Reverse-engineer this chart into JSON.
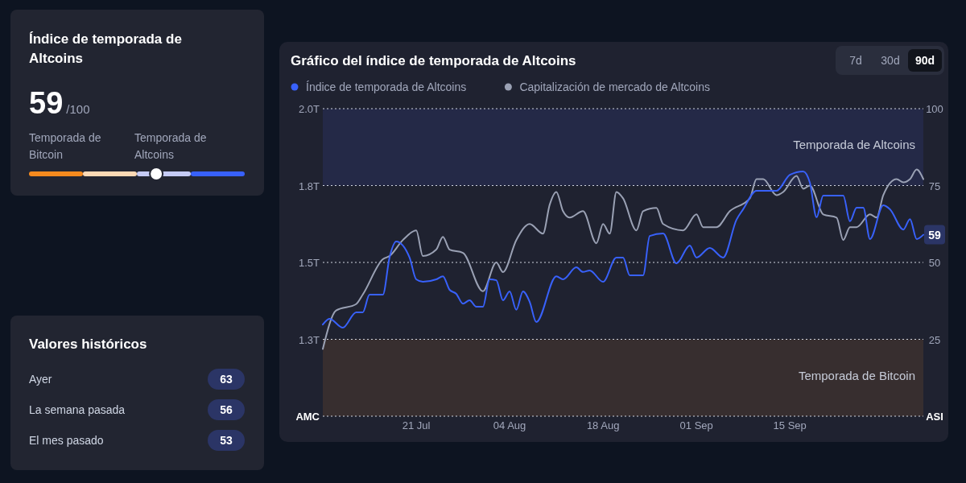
{
  "chart_data": [
    {
      "type": "other",
      "title": "Índice de temporada de Altcoins",
      "values": [
        59
      ],
      "annotations": [
        "/100",
        "Temporada de Bitcoin",
        "Temporada de Altcoins"
      ],
      "data_labels": true
    },
    {
      "type": "other",
      "title": "Valores históricos",
      "categories": [
        "Ayer",
        "La semana pasada",
        "El mes pasado"
      ],
      "values": [
        63,
        56,
        53
      ],
      "data_labels": true
    },
    {
      "type": "line",
      "title": "Gráfico del índice de temporada de Altcoins",
      "ylabel": "AMC",
      "y2label": "ASI",
      "annotations": [
        "7d",
        "30d",
        "90d"
      ],
      "legend": "top left",
      "grid": "y",
      "xlim": [
        "--07-07",
        "--10-05"
      ],
      "xticks": [
        {
          "value": "--07-21",
          "label": "21 Jul"
        },
        {
          "value": "--08-04",
          "label": "04 Aug"
        },
        {
          "value": "--08-18",
          "label": "18 Aug"
        },
        {
          "value": "--09-01",
          "label": "01 Sep"
        },
        {
          "value": "--09-15",
          "label": "15 Sep"
        }
      ],
      "ylim": [
        1.04,
        2.0
      ],
      "yticks": [
        {
          "value": 1.28,
          "label": "1.3T"
        },
        {
          "value": 1.52,
          "label": "1.5T"
        },
        {
          "value": 1.76,
          "label": "1.8T"
        },
        {
          "value": 2.0,
          "label": "2.0T"
        }
      ],
      "y2lim": [
        0,
        100
      ],
      "y2ticks": [
        25,
        50,
        75,
        100
      ],
      "bands": [
        {
          "axis": "y2",
          "from": 0,
          "to": 25,
          "label": "Temporada de Bitcoin",
          "color": "#372e2f"
        },
        {
          "axis": "y2",
          "from": 75,
          "to": 100,
          "label": "Temporada de Altcoins",
          "color": "#242947"
        }
      ],
      "series": [
        {
          "name": "Índice de temporada de Altcoins",
          "color": "#3861fb",
          "axis": "y2",
          "x": [
            "--07-07",
            "--07-08",
            "--07-10",
            "--07-12",
            "--07-13",
            "--07-14",
            "--07-16",
            "--07-17",
            "--07-18",
            "--07-20",
            "--07-21",
            "--07-22",
            "--07-24",
            "--07-25",
            "--07-26",
            "--07-27",
            "--07-28",
            "--07-29",
            "--07-30",
            "--07-31",
            "--08-01",
            "--08-02",
            "--08-03",
            "--08-04",
            "--08-05",
            "--08-06",
            "--08-07",
            "--08-08",
            "--08-11",
            "--08-12",
            "--08-14",
            "--08-15",
            "--08-16",
            "--08-18",
            "--08-20",
            "--08-21",
            "--08-22",
            "--08-24",
            "--08-25",
            "--08-27",
            "--08-29",
            "--08-31",
            "--09-01",
            "--09-03",
            "--09-05",
            "--09-07",
            "--09-08",
            "--09-10",
            "--09-13",
            "--09-15",
            "--09-17",
            "--09-18",
            "--09-19",
            "--09-20",
            "--09-23",
            "--09-24",
            "--09-25",
            "--09-26",
            "--09-27",
            "--09-29",
            "--09-30",
            "--10-02",
            "--10-03",
            "--10-04",
            "--10-05"
          ],
          "values": [
            29.8,
            31.7,
            28.8,
            33.8,
            33.8,
            39.5,
            39.5,
            51.6,
            56.8,
            51.6,
            44.5,
            43.7,
            44.5,
            45.5,
            41.1,
            39.8,
            36.6,
            37.7,
            35.6,
            35.6,
            44.5,
            44.2,
            37.7,
            40.6,
            34.6,
            40.6,
            37.2,
            30.6,
            45.5,
            44.5,
            48.4,
            46.9,
            47.4,
            43.7,
            51.6,
            51.6,
            45.8,
            45.8,
            58.6,
            59.4,
            49.7,
            55.5,
            51.6,
            54.7,
            51.6,
            63.9,
            67.3,
            73.3,
            73.3,
            78.5,
            79.6,
            75.9,
            64.7,
            71.7,
            71.7,
            63.4,
            67.8,
            67.8,
            57.6,
            68.6,
            67.3,
            60.7,
            64.1,
            57.6,
            59
          ],
          "value_labels": [
            null,
            null,
            null,
            null,
            null,
            null,
            null,
            null,
            null,
            null,
            null,
            null,
            null,
            null,
            null,
            null,
            null,
            null,
            null,
            null,
            null,
            null,
            null,
            null,
            null,
            null,
            null,
            null,
            null,
            null,
            null,
            null,
            null,
            null,
            null,
            null,
            null,
            null,
            null,
            null,
            null,
            null,
            null,
            null,
            null,
            null,
            null,
            null,
            null,
            null,
            null,
            null,
            null,
            null,
            null,
            null,
            null,
            null,
            null,
            null,
            null,
            null,
            null,
            null,
            "59"
          ]
        },
        {
          "name": "Capitalización de mercado de Altcoins",
          "color": "#9aa1b4",
          "axis": "y",
          "x": [
            "--07-07",
            "--07-09",
            "--07-12",
            "--07-13",
            "--07-16",
            "--07-17",
            "--07-19",
            "--07-21",
            "--07-22",
            "--07-24",
            "--07-25",
            "--07-26",
            "--07-28",
            "--07-31",
            "--08-02",
            "--08-03",
            "--08-05",
            "--08-07",
            "--08-09",
            "--08-10",
            "--08-11",
            "--08-12",
            "--08-13",
            "--08-15",
            "--08-17",
            "--08-18",
            "--08-19",
            "--08-20",
            "--08-21",
            "--08-23",
            "--08-24",
            "--08-26",
            "--08-27",
            "--08-30",
            "--09-01",
            "--09-02",
            "--09-04",
            "--09-06",
            "--09-09",
            "--09-10",
            "--09-11",
            "--09-13",
            "--09-14",
            "--09-16",
            "--09-17",
            "--09-18",
            "--09-20",
            "--09-22",
            "--09-23",
            "--09-24",
            "--09-25",
            "--09-27",
            "--09-28",
            "--09-29",
            "--10-01",
            "--10-02",
            "--10-03",
            "--10-04",
            "--10-05"
          ],
          "values": [
            1.25,
            1.37,
            1.39,
            1.42,
            1.53,
            1.54,
            1.59,
            1.62,
            1.54,
            1.56,
            1.6,
            1.56,
            1.55,
            1.43,
            1.52,
            1.49,
            1.59,
            1.64,
            1.61,
            1.7,
            1.74,
            1.68,
            1.66,
            1.68,
            1.58,
            1.64,
            1.61,
            1.74,
            1.72,
            1.62,
            1.68,
            1.69,
            1.64,
            1.62,
            1.67,
            1.63,
            1.63,
            1.68,
            1.72,
            1.78,
            1.78,
            1.73,
            1.74,
            1.79,
            1.75,
            1.76,
            1.67,
            1.66,
            1.59,
            1.63,
            1.63,
            1.67,
            1.66,
            1.73,
            1.78,
            1.77,
            1.78,
            1.81,
            1.78
          ]
        }
      ]
    }
  ]
}
